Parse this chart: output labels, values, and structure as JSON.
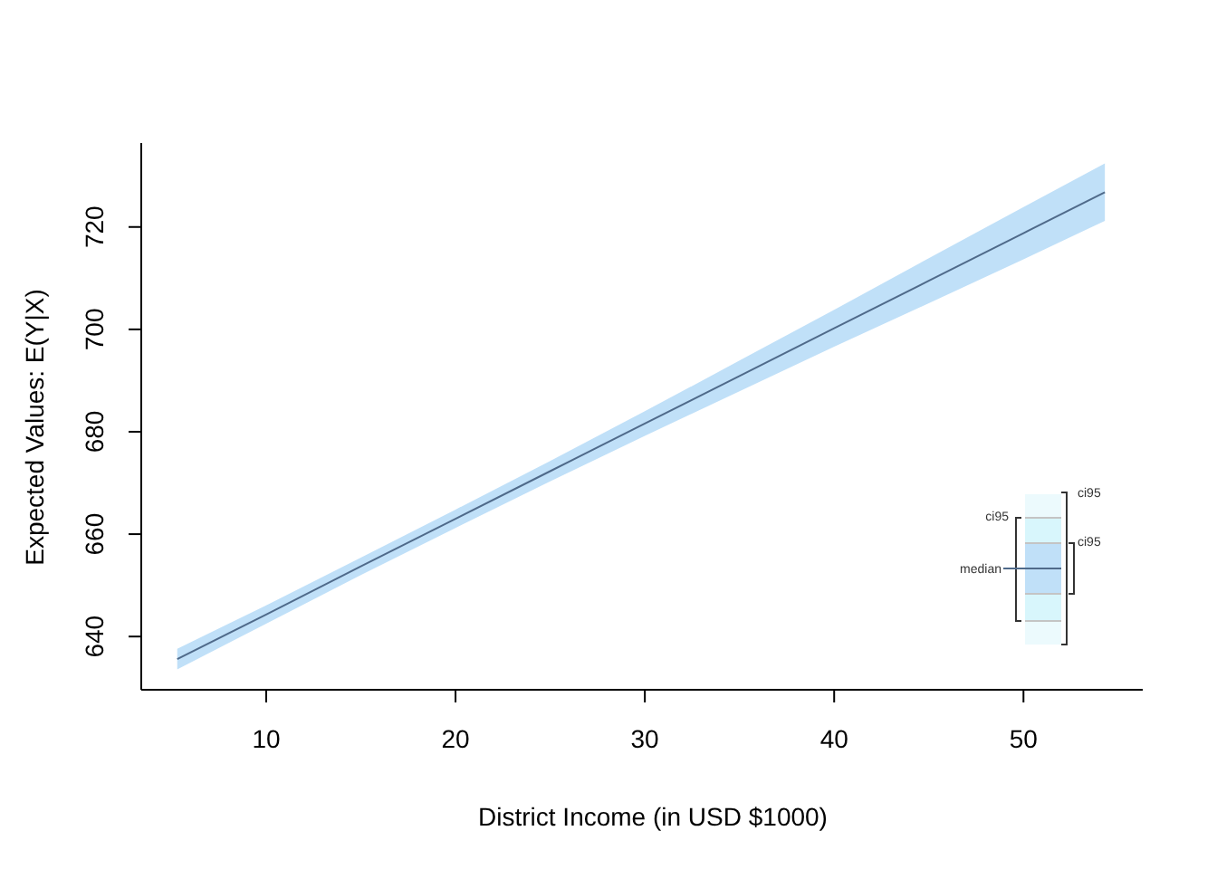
{
  "chart_data": {
    "type": "line",
    "xlabel": "District Income (in USD $1000)",
    "ylabel": "Expected Values: E(Y|X)",
    "x": [
      5.3,
      10,
      15,
      20,
      25,
      30,
      35,
      40,
      45,
      50,
      54.3
    ],
    "series": [
      {
        "name": "median",
        "color": "#4f6a8a",
        "values": [
          635.6,
          644.3,
          653.7,
          663.0,
          672.3,
          681.6,
          690.9,
          700.2,
          709.5,
          718.8,
          726.8
        ],
        "lower": [
          633.6,
          642.5,
          652.0,
          661.2,
          670.3,
          679.2,
          687.9,
          696.6,
          705.1,
          713.7,
          721.2
        ],
        "upper": [
          637.6,
          646.1,
          655.4,
          664.8,
          674.3,
          684.0,
          693.9,
          703.8,
          713.9,
          723.9,
          732.4
        ]
      }
    ],
    "xlim": [
      3.4,
      56.3
    ],
    "ylim": [
      629.6,
      736.4
    ],
    "xticks": [
      10,
      20,
      30,
      40,
      50
    ],
    "yticks": [
      640,
      660,
      680,
      700,
      720
    ],
    "legend": "bottom right",
    "annotations": [
      "ci95",
      "ci95",
      "ci95"
    ]
  }
}
